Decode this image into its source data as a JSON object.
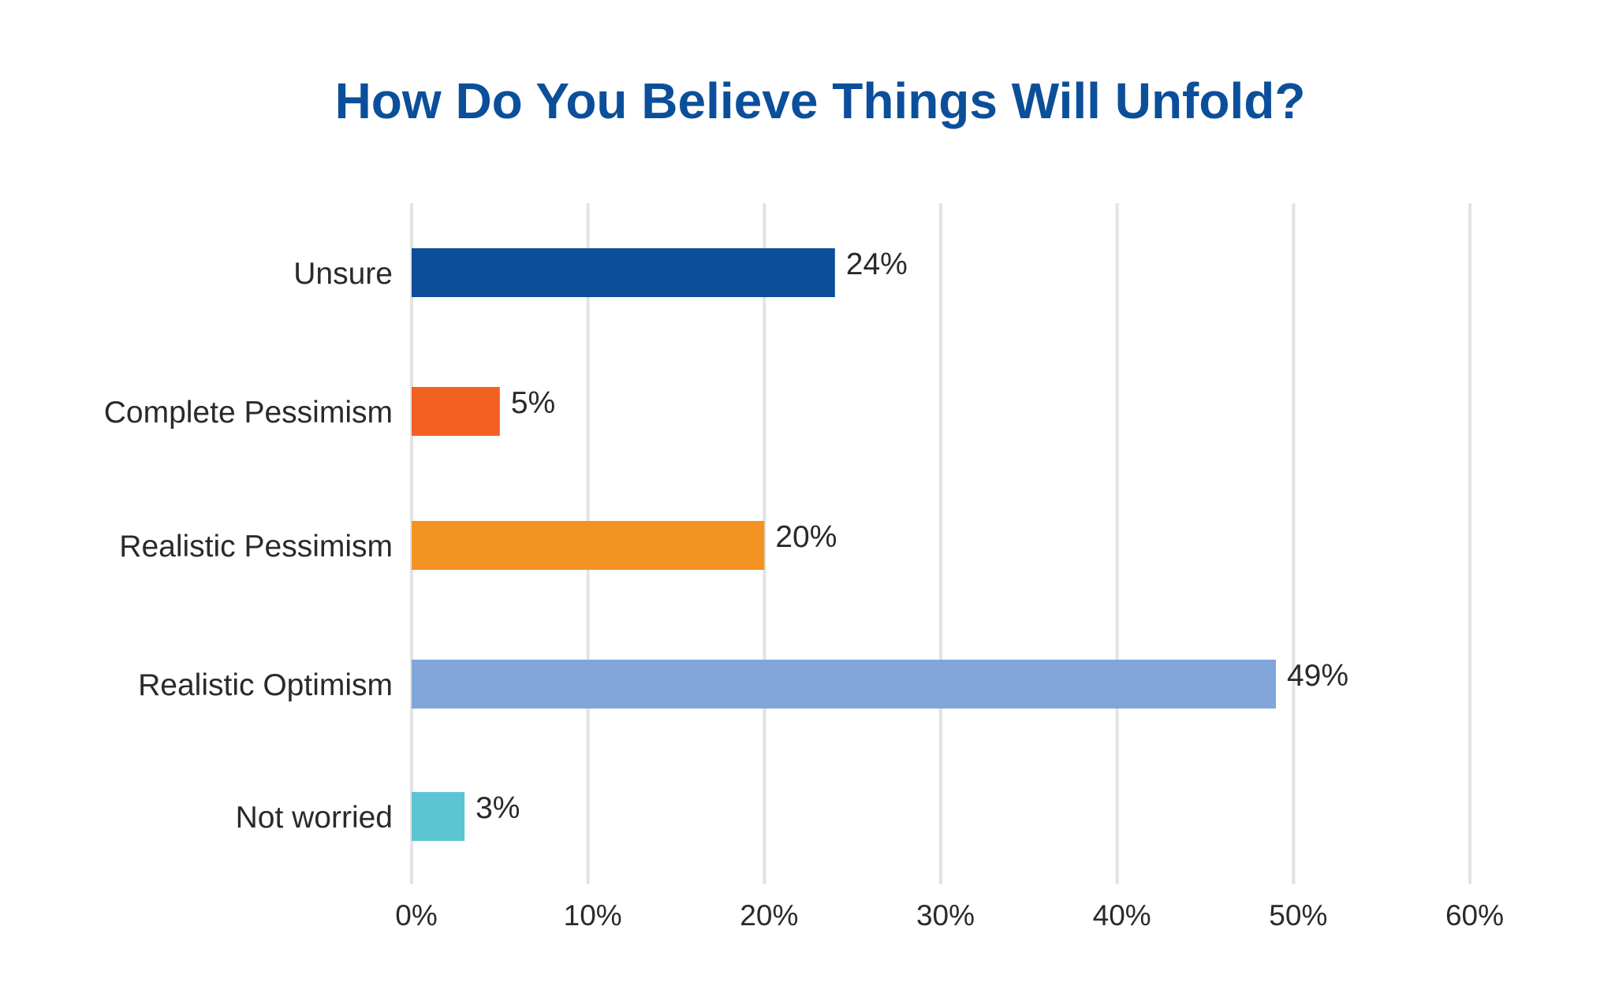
{
  "chart_data": {
    "type": "bar",
    "orientation": "horizontal",
    "title": "How Do You Believe Things Will Unfold?",
    "xlabel": "",
    "ylabel": "",
    "categories": [
      "Unsure",
      "Complete Pessimism",
      "Realistic Pessimism",
      "Realistic Optimism",
      "Not worried"
    ],
    "values": [
      24,
      5,
      20,
      49,
      3
    ],
    "value_labels": [
      "24%",
      "5%",
      "20%",
      "49%",
      "3%"
    ],
    "bar_colors": [
      "#0b4f9a",
      "#f26122",
      "#f39321",
      "#82a6d9",
      "#5bc5d4"
    ],
    "xlim": [
      0,
      60
    ],
    "x_ticks": [
      0,
      10,
      20,
      30,
      40,
      50,
      60
    ],
    "x_tick_labels": [
      "0%",
      "10%",
      "20%",
      "30%",
      "40%",
      "50%",
      "60%"
    ],
    "grid": "vertical",
    "legend": "none"
  },
  "colors": {
    "title": "#0b4f9a",
    "gridline": "#e3e3e3",
    "text": "#2a2a2a"
  }
}
